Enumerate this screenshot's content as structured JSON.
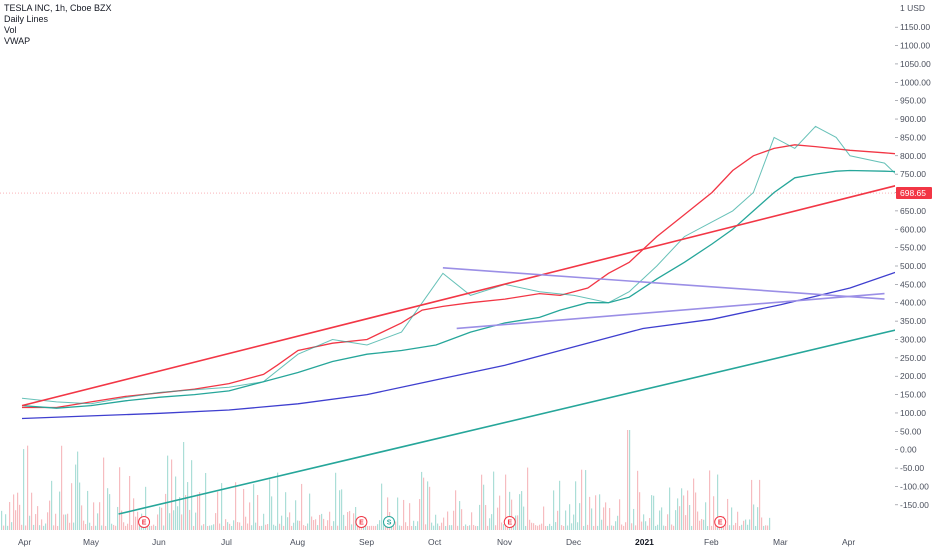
{
  "legend": {
    "symbol": "TESLA INC, 1h, Cboe BZX",
    "items": [
      "Daily Lines",
      "Vol",
      "VWAP"
    ]
  },
  "currency": "USD",
  "price_label": "698.65",
  "chart_data": {
    "type": "line",
    "x_labels": [
      "Apr",
      "May",
      "Jun",
      "Jul",
      "Aug",
      "Sep",
      "Oct",
      "Nov",
      "Dec",
      "2021",
      "Feb",
      "Mar",
      "Apr"
    ],
    "y_ticks": [
      "1150.00",
      "1100.00",
      "1050.00",
      "1000.00",
      "950.00",
      "900.00",
      "850.00",
      "800.00",
      "750.00",
      "700.00",
      "650.00",
      "600.00",
      "550.00",
      "500.00",
      "450.00",
      "400.00",
      "350.00",
      "300.00",
      "250.00",
      "200.00",
      "150.00",
      "100.00",
      "50.00",
      "0.00",
      "-50.00",
      "-100.00",
      "-150.00"
    ],
    "ylim": [
      -175,
      1175
    ],
    "current_price": 698.65,
    "events": [
      {
        "label": "E",
        "t": 1.45,
        "color": "#f23645"
      },
      {
        "label": "E",
        "t": 4.6,
        "color": "#f23645"
      },
      {
        "label": "S",
        "t": 5.0,
        "color": "#26a69a"
      },
      {
        "label": "E",
        "t": 6.75,
        "color": "#f23645"
      },
      {
        "label": "E",
        "t": 9.8,
        "color": "#f23645"
      }
    ],
    "series": [
      {
        "color": "#f23645",
        "points": [
          [
            0,
            115
          ],
          [
            0.5,
            115
          ],
          [
            1,
            130
          ],
          [
            1.5,
            145
          ],
          [
            2,
            155
          ],
          [
            2.5,
            165
          ],
          [
            3,
            180
          ],
          [
            3.5,
            205
          ],
          [
            3.7,
            230
          ],
          [
            4,
            270
          ],
          [
            4.5,
            290
          ],
          [
            5,
            300
          ],
          [
            5.5,
            345
          ],
          [
            5.8,
            380
          ],
          [
            6.1,
            390
          ],
          [
            6.5,
            400
          ],
          [
            7,
            410
          ],
          [
            7.5,
            425
          ],
          [
            7.8,
            420
          ],
          [
            8.2,
            440
          ],
          [
            8.5,
            480
          ],
          [
            8.8,
            510
          ],
          [
            9.2,
            580
          ],
          [
            9.6,
            640
          ],
          [
            10,
            700
          ],
          [
            10.3,
            760
          ],
          [
            10.6,
            800
          ],
          [
            10.9,
            820
          ],
          [
            11.2,
            830
          ],
          [
            11.5,
            825
          ],
          [
            12,
            815
          ],
          [
            12.5,
            808
          ],
          [
            13,
            800
          ]
        ]
      },
      {
        "color": "#26a69a",
        "points": [
          [
            0,
            120
          ],
          [
            0.5,
            113
          ],
          [
            1,
            120
          ],
          [
            1.5,
            133
          ],
          [
            2,
            143
          ],
          [
            2.5,
            150
          ],
          [
            3,
            160
          ],
          [
            3.5,
            185
          ],
          [
            4,
            210
          ],
          [
            4.5,
            240
          ],
          [
            5,
            260
          ],
          [
            5.5,
            270
          ],
          [
            6,
            285
          ],
          [
            6.5,
            320
          ],
          [
            7,
            345
          ],
          [
            7.5,
            360
          ],
          [
            7.8,
            380
          ],
          [
            8.2,
            400
          ],
          [
            8.5,
            400
          ],
          [
            8.8,
            415
          ],
          [
            9.2,
            465
          ],
          [
            9.6,
            510
          ],
          [
            10,
            560
          ],
          [
            10.3,
            600
          ],
          [
            10.6,
            650
          ],
          [
            10.9,
            700
          ],
          [
            11.2,
            740
          ],
          [
            11.5,
            750
          ],
          [
            11.8,
            758
          ],
          [
            12,
            760
          ],
          [
            12.5,
            758
          ],
          [
            13,
            755
          ]
        ]
      },
      {
        "color": "#3f3fcf",
        "points": [
          [
            0,
            85
          ],
          [
            1,
            92
          ],
          [
            2,
            99
          ],
          [
            3,
            108
          ],
          [
            4,
            125
          ],
          [
            5,
            150
          ],
          [
            6,
            190
          ],
          [
            7,
            230
          ],
          [
            7.8,
            270
          ],
          [
            8.5,
            305
          ],
          [
            9,
            330
          ],
          [
            10,
            355
          ],
          [
            11,
            395
          ],
          [
            12,
            440
          ],
          [
            13,
            505
          ]
        ]
      },
      {
        "color": "#26a69a",
        "points": [
          [
            0,
            140
          ],
          [
            0.5,
            130
          ],
          [
            1,
            125
          ],
          [
            1.5,
            142
          ],
          [
            2,
            156
          ],
          [
            2.5,
            163
          ],
          [
            3,
            170
          ],
          [
            3.5,
            185
          ],
          [
            4,
            260
          ],
          [
            4.5,
            300
          ],
          [
            5,
            285
          ],
          [
            5.5,
            320
          ],
          [
            5.8,
            400
          ],
          [
            6.1,
            480
          ],
          [
            6.5,
            420
          ],
          [
            7,
            450
          ],
          [
            7.5,
            430
          ],
          [
            8,
            420
          ],
          [
            8.5,
            400
          ],
          [
            8.8,
            430
          ],
          [
            9.2,
            500
          ],
          [
            9.6,
            580
          ],
          [
            10,
            620
          ],
          [
            10.3,
            650
          ],
          [
            10.6,
            700
          ],
          [
            10.9,
            850
          ],
          [
            11.2,
            820
          ],
          [
            11.5,
            880
          ],
          [
            11.8,
            850
          ],
          [
            12,
            800
          ],
          [
            12.5,
            780
          ],
          [
            13,
            690
          ]
        ]
      }
    ],
    "trendlines": [
      {
        "color": "#f23645",
        "from": [
          0,
          120
        ],
        "to": [
          22,
          1160
        ]
      },
      {
        "color": "#26a69a",
        "from": [
          1.4,
          -175
        ],
        "to": [
          24,
          830
        ]
      },
      {
        "color": "#9b8fe6",
        "from": [
          6.1,
          495
        ],
        "to": [
          12.5,
          410
        ]
      },
      {
        "color": "#9b8fe6",
        "from": [
          6.3,
          330
        ],
        "to": [
          12.5,
          425
        ]
      }
    ]
  }
}
